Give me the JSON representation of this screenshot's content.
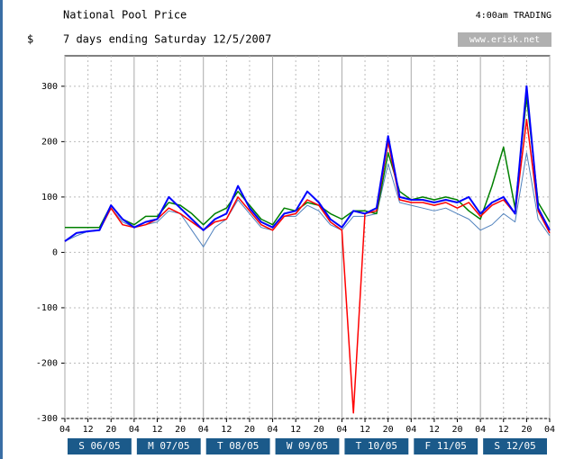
{
  "chart_data": {
    "type": "line",
    "title": "National Pool Price",
    "subtitle": "7 days ending Saturday 12/5/2007",
    "ylabel": "$",
    "status": "4:00am TRADING",
    "source": "www.erisk.net",
    "xlim": [
      0,
      168
    ],
    "ylim": [
      -300,
      355
    ],
    "yticks": [
      300,
      200,
      100,
      0,
      -100,
      -200,
      -300
    ],
    "xticks": [
      {
        "value": 0,
        "label": "04"
      },
      {
        "value": 8,
        "label": "12"
      },
      {
        "value": 16,
        "label": "20"
      },
      {
        "value": 24,
        "label": "04"
      },
      {
        "value": 32,
        "label": "12"
      },
      {
        "value": 40,
        "label": "20"
      },
      {
        "value": 48,
        "label": "04"
      },
      {
        "value": 56,
        "label": "12"
      },
      {
        "value": 64,
        "label": "20"
      },
      {
        "value": 72,
        "label": "04"
      },
      {
        "value": 80,
        "label": "12"
      },
      {
        "value": 88,
        "label": "20"
      },
      {
        "value": 96,
        "label": "04"
      },
      {
        "value": 104,
        "label": "12"
      },
      {
        "value": 112,
        "label": "20"
      },
      {
        "value": 120,
        "label": "04"
      },
      {
        "value": 128,
        "label": "12"
      },
      {
        "value": 136,
        "label": "20"
      },
      {
        "value": 144,
        "label": "04"
      },
      {
        "value": 152,
        "label": "12"
      },
      {
        "value": 160,
        "label": "20"
      },
      {
        "value": 168,
        "label": "04"
      }
    ],
    "day_labels": [
      "S 06/05",
      "M 07/05",
      "T 08/05",
      "W 09/05",
      "T 10/05",
      "F 11/05",
      "S 12/05"
    ],
    "grid": true,
    "x": [
      0,
      4,
      8,
      12,
      16,
      20,
      24,
      28,
      32,
      36,
      40,
      44,
      48,
      52,
      56,
      60,
      64,
      68,
      72,
      76,
      80,
      84,
      88,
      92,
      96,
      100,
      104,
      108,
      112,
      116,
      120,
      124,
      128,
      132,
      136,
      140,
      144,
      148,
      152,
      156,
      160,
      164,
      168
    ],
    "series": [
      {
        "color": "#4f81bd",
        "width": 1,
        "values": [
          20,
          30,
          38,
          40,
          80,
          55,
          45,
          50,
          55,
          75,
          70,
          40,
          10,
          45,
          60,
          95,
          70,
          45,
          40,
          65,
          65,
          85,
          75,
          50,
          40,
          65,
          65,
          70,
          160,
          90,
          85,
          80,
          75,
          80,
          70,
          60,
          40,
          50,
          70,
          55,
          180,
          60,
          30
        ]
      },
      {
        "color": "#008000",
        "width": 1.5,
        "values": [
          45,
          45,
          45,
          45,
          85,
          60,
          50,
          65,
          65,
          90,
          85,
          70,
          50,
          70,
          80,
          110,
          85,
          60,
          50,
          80,
          75,
          90,
          85,
          70,
          60,
          75,
          75,
          70,
          180,
          110,
          95,
          100,
          95,
          100,
          95,
          75,
          60,
          120,
          190,
          80,
          280,
          90,
          55
        ]
      },
      {
        "color": "#ff0000",
        "width": 1.5,
        "values": [
          20,
          35,
          38,
          40,
          80,
          50,
          45,
          50,
          60,
          80,
          70,
          55,
          40,
          55,
          60,
          100,
          75,
          50,
          40,
          65,
          70,
          95,
          85,
          55,
          40,
          -290,
          70,
          75,
          200,
          95,
          90,
          90,
          85,
          90,
          80,
          90,
          65,
          85,
          95,
          70,
          240,
          75,
          35
        ]
      },
      {
        "color": "#0000ff",
        "width": 2,
        "values": [
          20,
          35,
          38,
          40,
          85,
          60,
          45,
          55,
          60,
          100,
          80,
          60,
          40,
          60,
          70,
          120,
          80,
          55,
          45,
          70,
          75,
          110,
          90,
          60,
          45,
          75,
          70,
          80,
          210,
          100,
          95,
          95,
          90,
          95,
          90,
          100,
          70,
          90,
          100,
          70,
          300,
          80,
          40
        ]
      }
    ]
  }
}
